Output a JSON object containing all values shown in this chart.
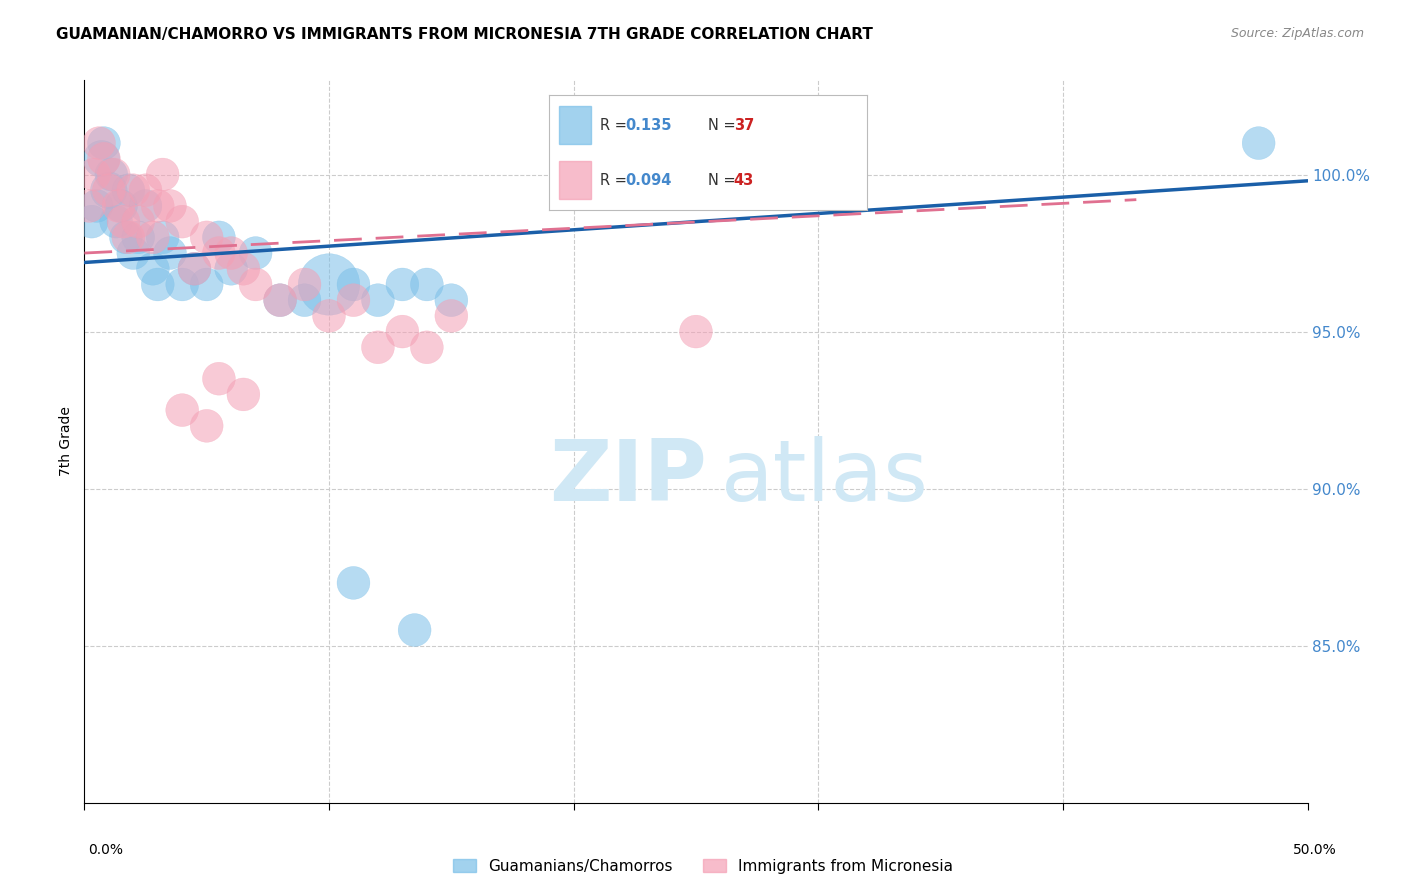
{
  "title": "GUAMANIAN/CHAMORRO VS IMMIGRANTS FROM MICRONESIA 7TH GRADE CORRELATION CHART",
  "source": "Source: ZipAtlas.com",
  "ylabel": "7th Grade",
  "xlim": [
    0,
    50
  ],
  "ylim": [
    80,
    103
  ],
  "y_ticks": [
    85,
    90,
    95,
    100
  ],
  "y_tick_labels": [
    "85.0%",
    "90.0%",
    "95.0%",
    "100.0%"
  ],
  "blue_R": 0.135,
  "blue_N": 37,
  "pink_R": 0.094,
  "pink_N": 43,
  "blue_color": "#7bbfe8",
  "pink_color": "#f4a0b5",
  "blue_line_color": "#1a5fa8",
  "pink_line_color": "#e07090",
  "legend_label_blue": "Guamanians/Chamorros",
  "legend_label_pink": "Immigrants from Micronesia",
  "blue_points_x": [
    0.3,
    0.5,
    0.7,
    0.8,
    1.0,
    1.1,
    1.3,
    1.5,
    1.7,
    1.8,
    2.0,
    2.2,
    2.5,
    2.8,
    3.0,
    3.2,
    3.5,
    4.0,
    4.5,
    5.0,
    5.5,
    6.0,
    7.0,
    8.0,
    9.0,
    10.0,
    11.0,
    12.0,
    13.0,
    14.0,
    15.0,
    11.0,
    13.5,
    48.0
  ],
  "blue_points_y": [
    98.5,
    99.0,
    100.5,
    101.0,
    99.5,
    100.0,
    98.5,
    99.0,
    98.0,
    99.5,
    97.5,
    98.0,
    99.0,
    97.0,
    96.5,
    98.0,
    97.5,
    96.5,
    97.0,
    96.5,
    98.0,
    97.0,
    97.5,
    96.0,
    96.0,
    96.5,
    96.5,
    96.0,
    96.5,
    96.5,
    96.0,
    87.0,
    85.5,
    101.0
  ],
  "blue_points_size": [
    80,
    80,
    100,
    80,
    100,
    80,
    80,
    80,
    80,
    80,
    80,
    80,
    80,
    80,
    80,
    80,
    80,
    80,
    80,
    80,
    80,
    80,
    80,
    80,
    80,
    280,
    80,
    80,
    80,
    80,
    80,
    80,
    80,
    80
  ],
  "pink_points_x": [
    0.2,
    0.4,
    0.6,
    0.8,
    1.0,
    1.2,
    1.4,
    1.6,
    1.8,
    2.0,
    2.2,
    2.5,
    2.8,
    3.0,
    3.2,
    3.5,
    4.0,
    4.5,
    5.0,
    5.5,
    6.0,
    6.5,
    7.0,
    8.0,
    9.0,
    10.0,
    11.0,
    12.0,
    13.0,
    14.0,
    15.0,
    5.5,
    6.5,
    25.0,
    4.0,
    5.0
  ],
  "pink_points_y": [
    99.0,
    100.0,
    101.0,
    100.5,
    99.5,
    100.0,
    99.0,
    98.5,
    98.0,
    99.5,
    98.5,
    99.5,
    98.0,
    99.0,
    100.0,
    99.0,
    98.5,
    97.0,
    98.0,
    97.5,
    97.5,
    97.0,
    96.5,
    96.0,
    96.5,
    95.5,
    96.0,
    94.5,
    95.0,
    94.5,
    95.5,
    93.5,
    93.0,
    95.0,
    92.5,
    92.0
  ],
  "pink_points_size": [
    80,
    80,
    80,
    80,
    80,
    80,
    80,
    80,
    80,
    80,
    80,
    80,
    80,
    80,
    80,
    80,
    80,
    80,
    80,
    80,
    80,
    80,
    80,
    80,
    80,
    80,
    80,
    80,
    80,
    80,
    80,
    80,
    80,
    80,
    80,
    80
  ],
  "watermark_zip": "ZIP",
  "watermark_atlas": "atlas",
  "watermark_color": "#d0e8f5",
  "background_color": "#ffffff",
  "grid_color": "#cccccc",
  "tick_color": "#4488cc",
  "blue_trend_x": [
    0,
    50
  ],
  "blue_trend_y": [
    97.2,
    99.8
  ],
  "pink_trend_x": [
    0,
    43
  ],
  "pink_trend_y": [
    97.5,
    99.2
  ]
}
